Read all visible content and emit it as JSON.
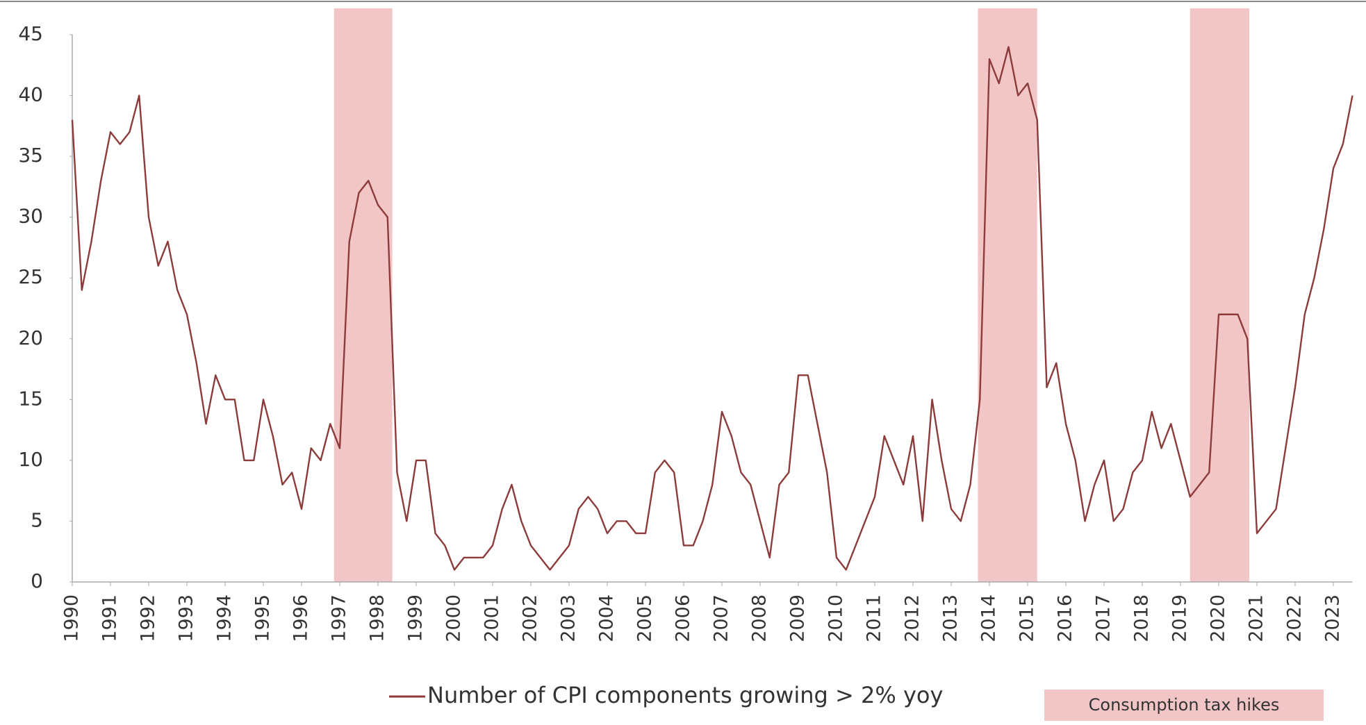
{
  "chart_data": {
    "type": "line",
    "categories": [
      "1990",
      null,
      null,
      null,
      "1991",
      null,
      null,
      null,
      "1992",
      null,
      null,
      null,
      "1993",
      null,
      null,
      null,
      "1994",
      null,
      null,
      null,
      "1995",
      null,
      null,
      null,
      "1996",
      null,
      null,
      null,
      "1997",
      null,
      null,
      null,
      "1998",
      null,
      null,
      null,
      "1999",
      null,
      null,
      null,
      "2000",
      null,
      null,
      null,
      "2001",
      null,
      null,
      null,
      "2002",
      null,
      null,
      null,
      "2003",
      null,
      null,
      null,
      "2004",
      null,
      null,
      null,
      "2005",
      null,
      null,
      null,
      "2006",
      null,
      null,
      null,
      "2007",
      null,
      null,
      null,
      "2008",
      null,
      null,
      null,
      "2009",
      null,
      null,
      null,
      "2010",
      null,
      null,
      null,
      "2011",
      null,
      null,
      null,
      "2012",
      null,
      null,
      null,
      "2013",
      null,
      null,
      null,
      "2014",
      null,
      null,
      null,
      "2015",
      null,
      null,
      null,
      "2016",
      null,
      null,
      null,
      "2017",
      null,
      null,
      null,
      "2018",
      null,
      null,
      null,
      "2019",
      null,
      null,
      null,
      "2020",
      null,
      null,
      null,
      "2021",
      null,
      null,
      null,
      "2022",
      null,
      null,
      null,
      "2023",
      null,
      null
    ],
    "series": [
      {
        "name": "Number of CPI components growing > 2% yoy",
        "color": "#8c3b3b",
        "values": [
          38,
          24,
          28,
          33,
          37,
          36,
          37,
          40,
          30,
          26,
          28,
          24,
          22,
          18,
          13,
          17,
          15,
          15,
          10,
          10,
          15,
          12,
          8,
          9,
          6,
          11,
          10,
          13,
          11,
          28,
          32,
          33,
          31,
          30,
          9,
          5,
          10,
          10,
          4,
          3,
          1,
          2,
          2,
          2,
          3,
          6,
          8,
          5,
          3,
          2,
          1,
          2,
          3,
          6,
          7,
          6,
          4,
          5,
          5,
          4,
          4,
          9,
          10,
          9,
          3,
          3,
          5,
          8,
          14,
          12,
          9,
          8,
          5,
          2,
          8,
          9,
          17,
          17,
          13,
          9,
          2,
          1,
          3,
          5,
          7,
          12,
          10,
          8,
          12,
          5,
          15,
          10,
          6,
          5,
          8,
          15,
          43,
          41,
          44,
          40,
          41,
          38,
          16,
          18,
          13,
          10,
          5,
          8,
          10,
          5,
          6,
          9,
          10,
          14,
          11,
          13,
          10,
          7,
          8,
          9,
          22,
          22,
          22,
          20,
          4,
          5,
          6,
          11,
          16,
          22,
          25,
          29,
          34,
          36,
          40
        ]
      }
    ],
    "highlight": {
      "name": "Consumption tax hikes",
      "color": "#f2c6c6",
      "spans": [
        [
          27.4,
          33.5
        ],
        [
          94.8,
          101
        ],
        [
          117,
          123.2
        ]
      ]
    },
    "ylim": [
      0,
      45
    ],
    "yticks": [
      0,
      5,
      10,
      15,
      20,
      25,
      30,
      35,
      40,
      45
    ]
  }
}
